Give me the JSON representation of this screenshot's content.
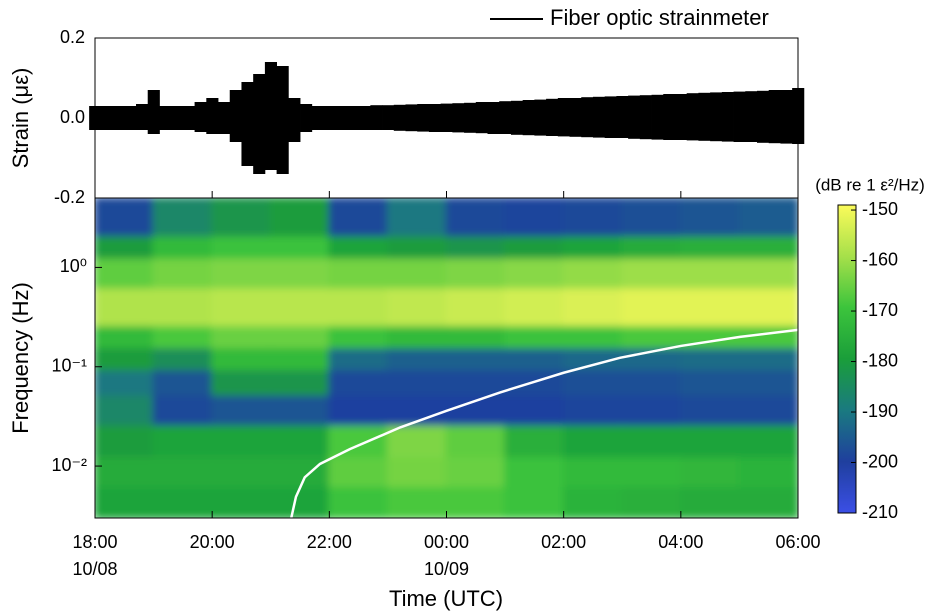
{
  "chart_data": [
    {
      "type": "strain",
      "ylabel": "Strain (με)",
      "xlim": [
        0,
        12
      ],
      "ylim": [
        -0.2,
        0.2
      ],
      "yticks": [
        -0.2,
        {
          "value": 0,
          "label": "0.0"
        },
        0.2
      ],
      "legend": "upper right",
      "series": [
        {
          "name": "Fiber optic strainmeter",
          "color": "#000000",
          "x": [
            0,
            0.2,
            0.4,
            0.6,
            0.8,
            1,
            1.2,
            1.4,
            1.6,
            1.8,
            2,
            2.2,
            2.4,
            2.6,
            2.8,
            3,
            3.2,
            3.4,
            3.6,
            3.8,
            4,
            4.2,
            4.4,
            4.6,
            4.8,
            5,
            5.2,
            5.4,
            5.6,
            5.8,
            6,
            6.2,
            6.4,
            6.6,
            6.8,
            7,
            7.2,
            7.4,
            7.6,
            7.8,
            8,
            8.2,
            8.4,
            8.6,
            8.8,
            9,
            9.2,
            9.4,
            9.6,
            9.8,
            10,
            10.2,
            10.4,
            10.6,
            10.8,
            11,
            11.2,
            11.4,
            11.6,
            11.8,
            12
          ],
          "max": [
            0.03,
            0.03,
            0.03,
            0.03,
            0.035,
            0.07,
            0.03,
            0.03,
            0.03,
            0.04,
            0.05,
            0.04,
            0.07,
            0.09,
            0.11,
            0.14,
            0.13,
            0.05,
            0.035,
            0.03,
            0.03,
            0.03,
            0.03,
            0.03,
            0.032,
            0.032,
            0.033,
            0.034,
            0.035,
            0.035,
            0.036,
            0.037,
            0.038,
            0.04,
            0.04,
            0.042,
            0.043,
            0.045,
            0.046,
            0.048,
            0.05,
            0.05,
            0.052,
            0.053,
            0.054,
            0.055,
            0.056,
            0.057,
            0.058,
            0.06,
            0.06,
            0.062,
            0.063,
            0.064,
            0.065,
            0.066,
            0.067,
            0.068,
            0.07,
            0.07,
            0.075
          ],
          "min": [
            -0.03,
            -0.03,
            -0.03,
            -0.03,
            -0.03,
            -0.04,
            -0.03,
            -0.03,
            -0.03,
            -0.035,
            -0.04,
            -0.04,
            -0.06,
            -0.12,
            -0.14,
            -0.13,
            -0.14,
            -0.06,
            -0.035,
            -0.03,
            -0.03,
            -0.03,
            -0.03,
            -0.03,
            -0.03,
            -0.03,
            -0.032,
            -0.033,
            -0.034,
            -0.035,
            -0.035,
            -0.036,
            -0.037,
            -0.038,
            -0.04,
            -0.04,
            -0.042,
            -0.043,
            -0.044,
            -0.045,
            -0.046,
            -0.047,
            -0.048,
            -0.049,
            -0.05,
            -0.05,
            -0.052,
            -0.053,
            -0.054,
            -0.055,
            -0.055,
            -0.056,
            -0.057,
            -0.058,
            -0.059,
            -0.06,
            -0.06,
            -0.062,
            -0.063,
            -0.064,
            -0.065
          ]
        }
      ]
    },
    {
      "type": "spectrogram",
      "xlabel": "Time (UTC)",
      "ylabel": "Frequency (Hz)",
      "xlim": [
        0,
        12
      ],
      "xticks": [
        {
          "value": 0,
          "label": "18:00"
        },
        {
          "value": 2,
          "label": "20:00"
        },
        {
          "value": 4,
          "label": "22:00"
        },
        {
          "value": 6,
          "label": "00:00"
        },
        {
          "value": 8,
          "label": "02:00"
        },
        {
          "value": 10,
          "label": "04:00"
        },
        {
          "value": 12,
          "label": "06:00"
        }
      ],
      "date_labels": [
        {
          "value": 0,
          "label": "10/08"
        },
        {
          "value": 6,
          "label": "10/09"
        }
      ],
      "ylim": [
        0.003,
        5
      ],
      "log_y": true,
      "yticks": [
        {
          "value": 0.01,
          "label": "10⁻²"
        },
        {
          "value": 0.1,
          "label": "10⁻¹"
        },
        {
          "value": 1,
          "label": "10⁰"
        }
      ],
      "time_edges": [
        0,
        1,
        2,
        3,
        4,
        5,
        6,
        7,
        8,
        9,
        10,
        11,
        12
      ],
      "freq_edges": [
        5,
        2,
        1.2,
        0.6,
        0.25,
        0.15,
        0.09,
        0.05,
        0.025,
        0.012,
        0.006,
        0.003
      ],
      "db": [
        [
          -198,
          -186,
          -182,
          -180,
          -198,
          -190,
          -198,
          -199,
          -198,
          -197,
          -196,
          -195
        ],
        [
          -180,
          -172,
          -170,
          -170,
          -178,
          -180,
          -182,
          -180,
          -178,
          -176,
          -175,
          -175
        ],
        [
          -166,
          -164,
          -163,
          -163,
          -164,
          -164,
          -163,
          -162,
          -161,
          -160,
          -160,
          -160
        ],
        [
          -158,
          -158,
          -157,
          -157,
          -157,
          -156,
          -155,
          -154,
          -153,
          -152,
          -152,
          -152
        ],
        [
          -172,
          -168,
          -165,
          -165,
          -170,
          -172,
          -172,
          -170,
          -170,
          -168,
          -168,
          -168
        ],
        [
          -180,
          -184,
          -172,
          -172,
          -192,
          -194,
          -194,
          -194,
          -193,
          -193,
          -192,
          -192
        ],
        [
          -190,
          -196,
          -182,
          -182,
          -198,
          -198,
          -198,
          -198,
          -197,
          -197,
          -196,
          -196
        ],
        [
          -186,
          -198,
          -196,
          -196,
          -200,
          -200,
          -200,
          -200,
          -199,
          -199,
          -198,
          -198
        ],
        [
          -180,
          -178,
          -178,
          -178,
          -168,
          -163,
          -166,
          -175,
          -178,
          -178,
          -178,
          -178
        ],
        [
          -176,
          -176,
          -176,
          -176,
          -166,
          -164,
          -165,
          -170,
          -172,
          -172,
          -173,
          -174
        ],
        [
          -178,
          -178,
          -178,
          -178,
          -170,
          -168,
          -168,
          -170,
          -174,
          -175,
          -176,
          -176
        ]
      ],
      "colormap": [
        "#3b4fe6",
        "#1f3f9e",
        "#1a7a80",
        "#1a9e3a",
        "#3cc43c",
        "#a6e04a",
        "#fbfb5a"
      ],
      "colorbar": {
        "label": "(dB re 1 ε²/Hz)",
        "clim": [
          -210,
          -149
        ],
        "ticks": [
          -210,
          -200,
          -190,
          -180,
          -170,
          -160,
          -150
        ]
      },
      "curve": {
        "color": "#ffffff",
        "x": [
          3.35,
          3.43,
          3.58,
          3.84,
          4.35,
          5.21,
          6,
          6.91,
          8,
          8.96,
          10,
          11.01,
          12
        ],
        "y": [
          0.003,
          0.0049,
          0.0077,
          0.0105,
          0.0148,
          0.0245,
          0.036,
          0.055,
          0.087,
          0.123,
          0.162,
          0.2,
          0.235
        ]
      }
    }
  ]
}
